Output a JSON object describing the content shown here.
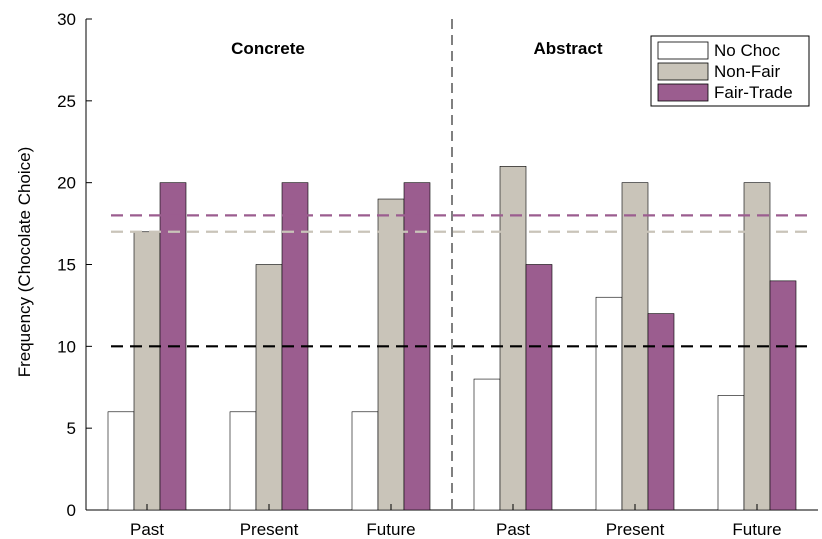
{
  "chart_data": {
    "type": "bar",
    "title": "",
    "xlabel": "",
    "ylabel": "Frequency (Chocolate Choice)",
    "ylim": [
      0,
      30
    ],
    "yticks": [
      "0",
      "5",
      "10",
      "15",
      "20",
      "25",
      "30"
    ],
    "categories": [
      "Past",
      "Present",
      "Future",
      "Past",
      "Present",
      "Future"
    ],
    "groups": [
      {
        "label": "Concrete",
        "categories": [
          "Past",
          "Present",
          "Future"
        ]
      },
      {
        "label": "Abstract",
        "categories": [
          "Past",
          "Present",
          "Future"
        ]
      }
    ],
    "series": [
      {
        "name": "No Choc",
        "color": "#ffffff",
        "values": [
          6,
          6,
          6,
          8,
          13,
          7
        ]
      },
      {
        "name": "Non-Fair",
        "color": "#c9c4b9",
        "values": [
          17,
          15,
          19,
          21,
          20,
          20
        ]
      },
      {
        "name": "Fair-Trade",
        "color": "#9b5d8f",
        "values": [
          20,
          20,
          20,
          15,
          12,
          14
        ]
      }
    ],
    "reference_lines": [
      {
        "value": 18,
        "color": "#9b5d8f",
        "style": "dashed"
      },
      {
        "value": 17,
        "color": "#c9c4b9",
        "style": "dashed"
      },
      {
        "value": 10,
        "color": "#000000",
        "style": "dashed"
      }
    ],
    "group_divider": "dashed vertical line between Concrete and Abstract",
    "grid": false,
    "legend_position": "top-right"
  }
}
